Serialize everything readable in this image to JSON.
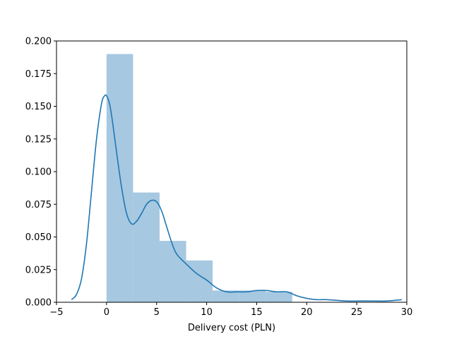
{
  "chart_data": {
    "type": "bar",
    "subtype": "histogram-with-kde",
    "title": "",
    "xlabel": "Delivery cost (PLN)",
    "ylabel": "",
    "xlim": [
      -5,
      30
    ],
    "ylim": [
      0,
      0.2
    ],
    "x_ticks": [
      -5,
      0,
      5,
      10,
      15,
      20,
      25,
      30
    ],
    "y_ticks": [
      0.0,
      0.025,
      0.05,
      0.075,
      0.1,
      0.125,
      0.15,
      0.175,
      0.2
    ],
    "x_tick_labels": [
      "−5",
      "0",
      "5",
      "10",
      "15",
      "20",
      "25",
      "30"
    ],
    "y_tick_labels": [
      "0.000",
      "0.025",
      "0.050",
      "0.075",
      "0.100",
      "0.125",
      "0.150",
      "0.175",
      "0.200"
    ],
    "grid": false,
    "bins": [
      {
        "start": 0.0,
        "end": 2.65,
        "density": 0.19
      },
      {
        "start": 2.65,
        "end": 5.3,
        "density": 0.084
      },
      {
        "start": 5.3,
        "end": 7.95,
        "density": 0.047
      },
      {
        "start": 7.95,
        "end": 10.6,
        "density": 0.032
      },
      {
        "start": 10.6,
        "end": 13.25,
        "density": 0.009
      },
      {
        "start": 13.25,
        "end": 15.9,
        "density": 0.009
      },
      {
        "start": 15.9,
        "end": 18.55,
        "density": 0.008
      }
    ],
    "kde": {
      "x": [
        -3.5,
        -3.0,
        -2.5,
        -2.0,
        -1.5,
        -1.0,
        -0.5,
        -0.2,
        0.0,
        0.3,
        0.6,
        1.0,
        1.5,
        2.0,
        2.5,
        3.0,
        3.5,
        4.0,
        4.5,
        5.0,
        5.5,
        6.0,
        6.5,
        7.0,
        8.0,
        9.0,
        10.0,
        11.0,
        12.0,
        13.0,
        14.0,
        15.0,
        16.0,
        17.0,
        18.0,
        19.0,
        20.0,
        21.0,
        22.0,
        24.0,
        26.0,
        28.0,
        29.5
      ],
      "y": [
        0.002,
        0.006,
        0.018,
        0.045,
        0.085,
        0.125,
        0.152,
        0.158,
        0.158,
        0.152,
        0.138,
        0.115,
        0.088,
        0.068,
        0.06,
        0.062,
        0.068,
        0.075,
        0.078,
        0.077,
        0.07,
        0.058,
        0.046,
        0.037,
        0.029,
        0.022,
        0.017,
        0.011,
        0.008,
        0.008,
        0.008,
        0.009,
        0.009,
        0.008,
        0.008,
        0.005,
        0.003,
        0.002,
        0.002,
        0.001,
        0.001,
        0.001,
        0.002
      ]
    },
    "colors": {
      "bar": "#a6c8e0",
      "kde": "#1f77b4"
    }
  }
}
